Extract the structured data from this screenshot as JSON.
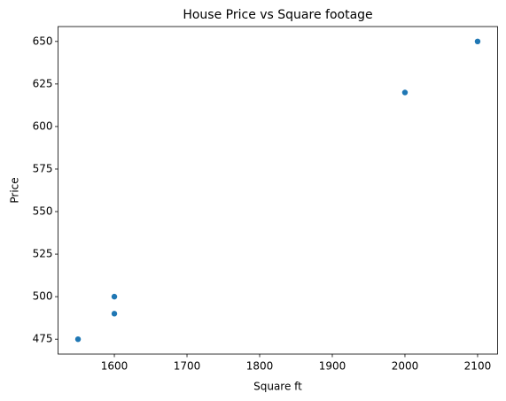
{
  "chart_data": {
    "type": "scatter",
    "title": "House Price vs Square footage",
    "x_label": "Square ft",
    "y_label": "Price",
    "x": [
      1550,
      1600,
      1600,
      2000,
      2100
    ],
    "values": [
      475,
      490,
      500,
      620,
      650
    ],
    "color": "#1f77b4",
    "xlim": [
      1522.5,
      2127.5
    ],
    "ylim": [
      466.25,
      658.75
    ],
    "xticks": [
      1600,
      1700,
      1800,
      1900,
      2000,
      2100
    ],
    "yticks": [
      475,
      500,
      525,
      550,
      575,
      600,
      625,
      650
    ],
    "grid": false
  }
}
